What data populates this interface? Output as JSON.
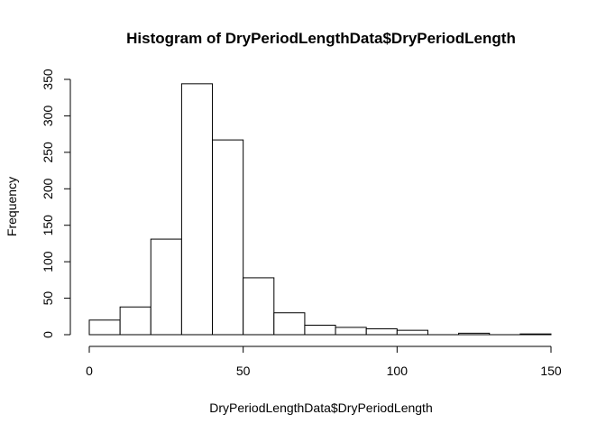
{
  "chart_data": {
    "type": "bar",
    "title": "Histogram of DryPeriodLengthData$DryPeriodLength",
    "xlabel": "DryPeriodLengthData$DryPeriodLength",
    "ylabel": "Frequency",
    "bins": [
      {
        "from": 0,
        "to": 10,
        "count": 20
      },
      {
        "from": 10,
        "to": 20,
        "count": 38
      },
      {
        "from": 20,
        "to": 30,
        "count": 131
      },
      {
        "from": 30,
        "to": 40,
        "count": 344
      },
      {
        "from": 40,
        "to": 50,
        "count": 267
      },
      {
        "from": 50,
        "to": 60,
        "count": 78
      },
      {
        "from": 60,
        "to": 70,
        "count": 30
      },
      {
        "from": 70,
        "to": 80,
        "count": 13
      },
      {
        "from": 80,
        "to": 90,
        "count": 10
      },
      {
        "from": 90,
        "to": 100,
        "count": 8
      },
      {
        "from": 100,
        "to": 110,
        "count": 6
      },
      {
        "from": 110,
        "to": 120,
        "count": 0
      },
      {
        "from": 120,
        "to": 130,
        "count": 2
      },
      {
        "from": 130,
        "to": 140,
        "count": 0
      },
      {
        "from": 140,
        "to": 150,
        "count": 1
      }
    ],
    "xlim": [
      0,
      150
    ],
    "ylim": [
      0,
      350
    ],
    "xticks": [
      0,
      50,
      100,
      150
    ],
    "yticks": [
      0,
      50,
      100,
      150,
      200,
      250,
      300,
      350
    ],
    "grid": false,
    "colors": {
      "bar_fill": "#ffffff",
      "bar_stroke": "#000000"
    }
  }
}
